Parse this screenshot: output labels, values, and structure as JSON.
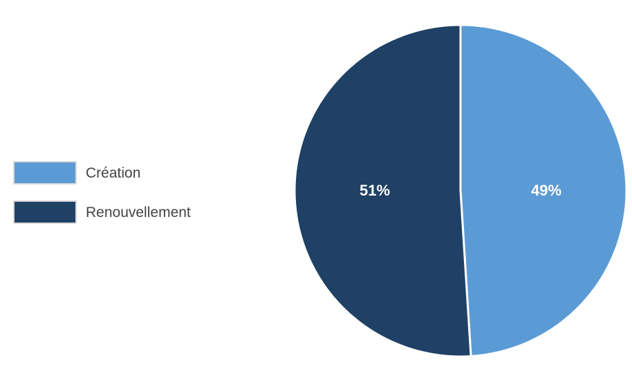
{
  "chart_data": {
    "type": "pie",
    "categories": [
      "Création",
      "Renouvellement"
    ],
    "values": [
      49,
      51
    ],
    "value_labels": [
      "49%",
      "51%"
    ],
    "colors": [
      "#5B9BD5",
      "#1F4166"
    ],
    "legend": {
      "position": "left",
      "entries": [
        "Création",
        "Renouvellement"
      ]
    },
    "title": ""
  }
}
